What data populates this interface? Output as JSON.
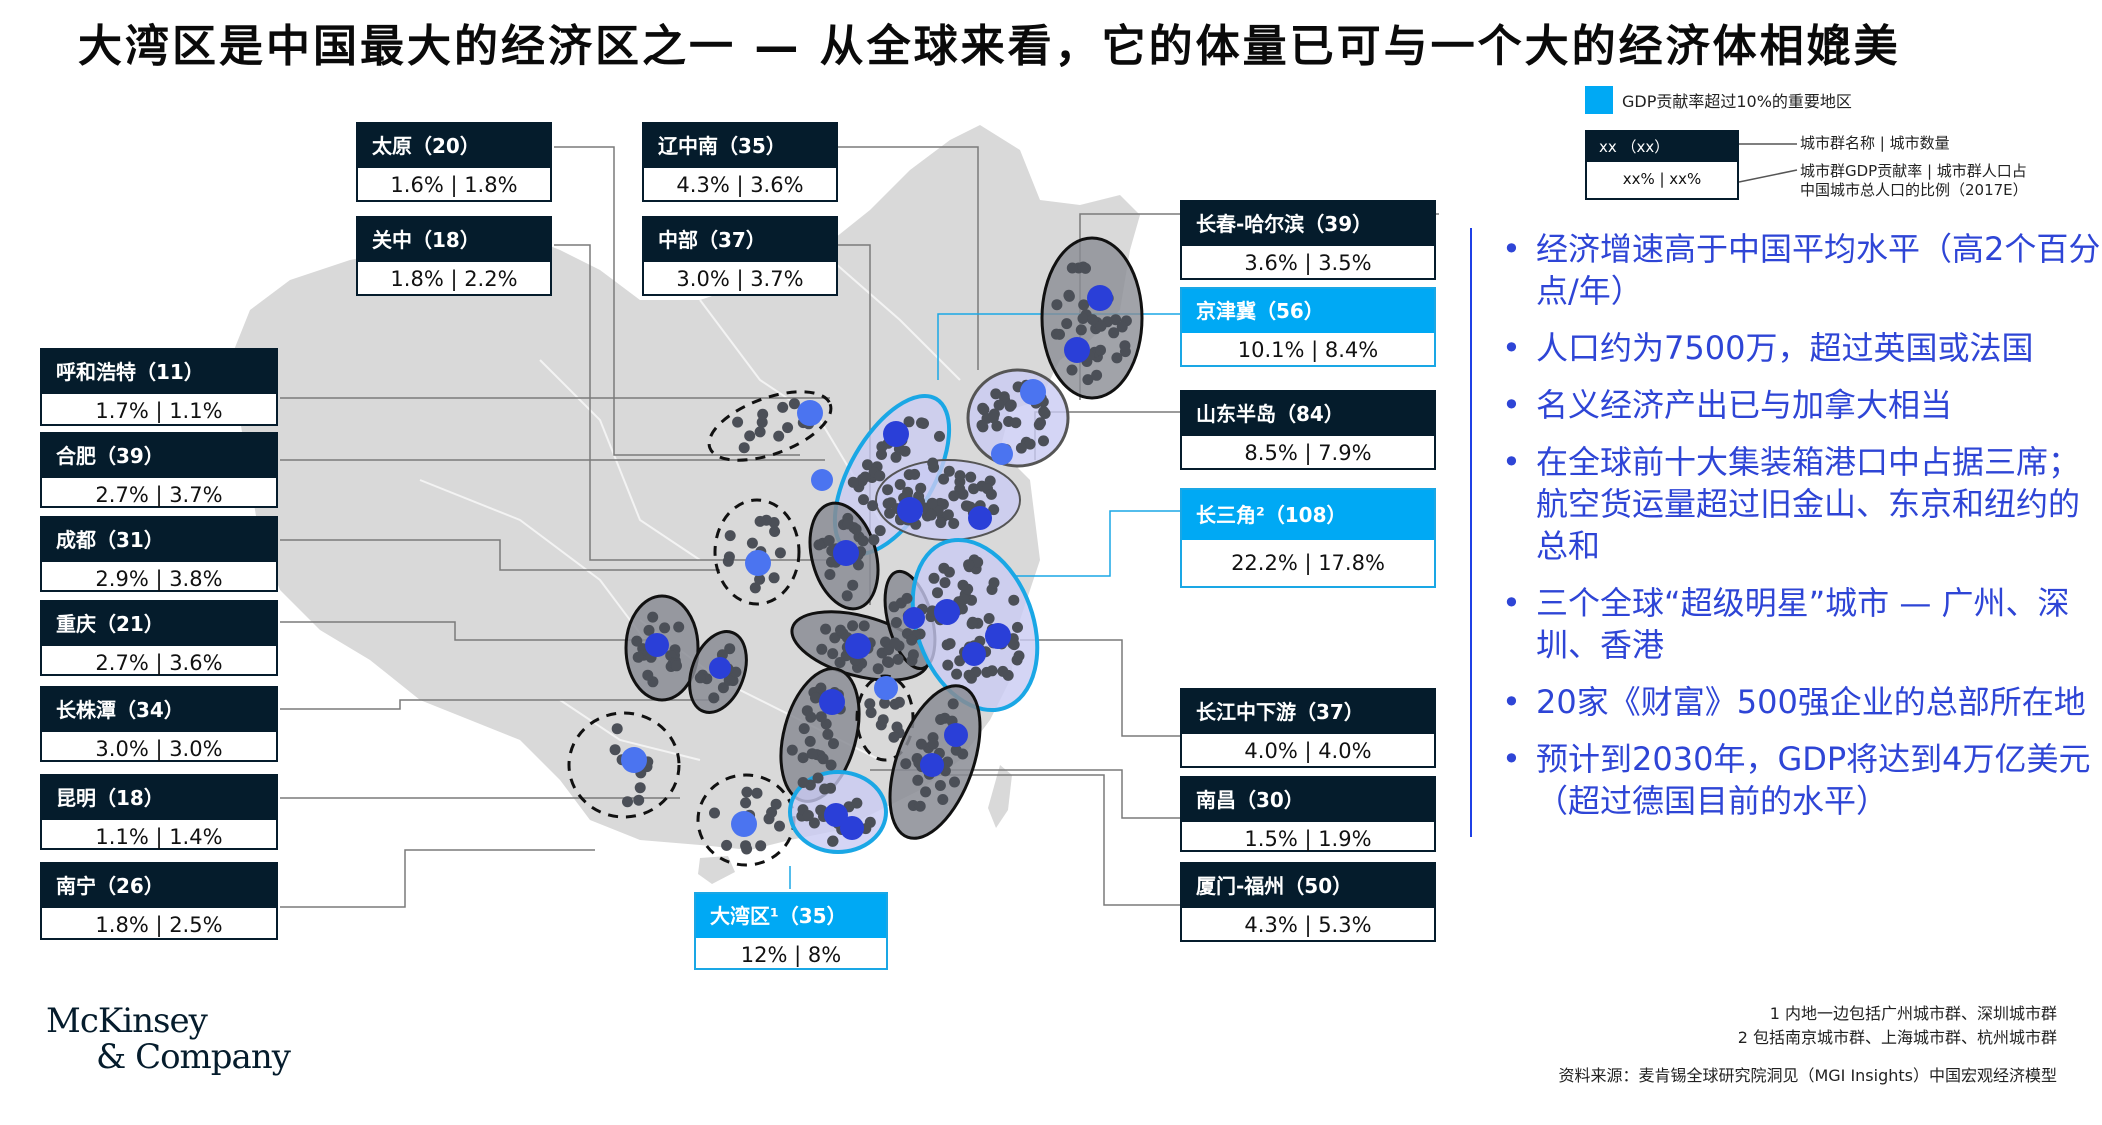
{
  "title": "大湾区是中国最大的经济区之一 — 从全球来看，它的体量已可与一个大的经济体相媲美",
  "legend": {
    "highlight_label": "GDP贡献率超过10%的重要地区",
    "highlight_color": "#00A9F4",
    "key_head": "xx （xx）",
    "key_value": "xx% | xx%",
    "key_note_head": "城市群名称 | 城市数量",
    "key_note_value_line1": "城市群GDP贡献率 | 城市群人口占",
    "key_note_value_line2": "中国城市总人口的比例（2017E）"
  },
  "clusters": {
    "taiyuan": {
      "name": "太原（20）",
      "value": "1.6% | 1.8%"
    },
    "liaozhongnan": {
      "name": "辽中南（35）",
      "value": "4.3% | 3.6%"
    },
    "guanzhong": {
      "name": "关中（18）",
      "value": "1.8% | 2.2%"
    },
    "zhongbu": {
      "name": "中部（37）",
      "value": "3.0% | 3.7%"
    },
    "changchun": {
      "name": "长春-哈尔滨（39）",
      "value": "3.6% | 3.5%"
    },
    "jingjinji": {
      "name": "京津冀（56）",
      "value": "10.1% | 8.4%"
    },
    "huhehaote": {
      "name": "呼和浩特（11）",
      "value": "1.7% | 1.1%"
    },
    "shandong": {
      "name": "山东半岛（84）",
      "value": "8.5% | 7.9%"
    },
    "hefei": {
      "name": "合肥（39）",
      "value": "2.7% | 3.7%"
    },
    "changsanjiao": {
      "name": "长三角²（108）",
      "value": "22.2% | 17.8%"
    },
    "chengdu": {
      "name": "成都（31）",
      "value": "2.9% | 3.8%"
    },
    "chongqing": {
      "name": "重庆（21）",
      "value": "2.7% | 3.6%"
    },
    "changzhutan": {
      "name": "长株潭（34）",
      "value": "3.0% | 3.0%"
    },
    "changjiang": {
      "name": "长江中下游（37）",
      "value": "4.0% | 4.0%"
    },
    "kunming": {
      "name": "昆明（18）",
      "value": "1.1% | 1.4%"
    },
    "nanchang": {
      "name": "南昌（30）",
      "value": "1.5% | 1.9%"
    },
    "nanning": {
      "name": "南宁（26）",
      "value": "1.8% | 2.5%"
    },
    "dawanqu": {
      "name": "大湾区¹（35）",
      "value": "12% | 8%"
    },
    "xiamen": {
      "name": "厦门-福州（50）",
      "value": "4.3% | 5.3%"
    }
  },
  "bullets": [
    "经济增速高于中国平均水平（高2个百分点/年）",
    "人口约为7500万，超过英国或法国",
    "名义经济产出已与加拿大相当",
    "在全球前十大集装箱港口中占据三席；航空货运量超过旧金山、东京和纽约的总和",
    "三个全球“超级明星”城市 — 广州、深圳、香港",
    "20家《财富》500强企业的总部所在地",
    "预计到2030年，GDP将达到4万亿美元（超过德国目前的水平）"
  ],
  "footnotes": {
    "note1": "1 内地一边包括广州城市群、深圳城市群",
    "note2": "2 包括南京城市群、上海城市群、杭州城市群",
    "source": "资料来源：麦肯锡全球研究院洞见（MGI Insights）中国宏观经济模型"
  },
  "logo": {
    "line1": "McKinsey",
    "line2": "& Company"
  },
  "colors": {
    "navy": "#051C2C",
    "accent_blue": "#00A9F4",
    "bullet_blue": "#2E45D6",
    "city_dot": "#4B4F57",
    "core_city": "#2A3FD8"
  }
}
